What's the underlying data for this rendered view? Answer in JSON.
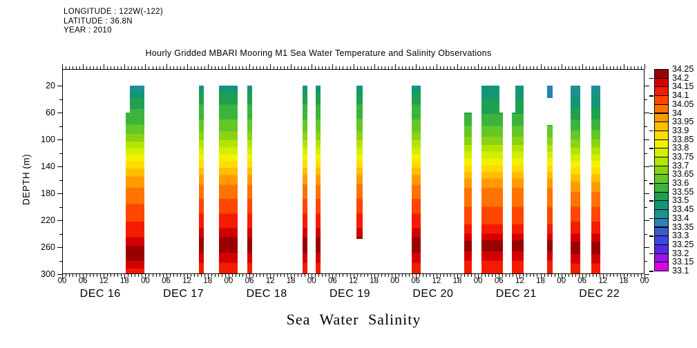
{
  "header": {
    "longitude": "LONGITUDE : 122W(-122)",
    "latitude": "LATITUDE : 36.8N",
    "year": "YEAR : 2010"
  },
  "title": "Hourly Gridded MBARI Mooring M1 Sea Water Temperature and Salinity Observations",
  "footer_label": "Sea Water Salinity",
  "y_axis_label": "DEPTH (m)",
  "chart_data": {
    "type": "heatmap",
    "title": "Hourly Gridded MBARI Mooring M1 Sea Water Temperature and Salinity Observations",
    "variable": "Sea Water Salinity",
    "ylabel": "DEPTH (m)",
    "x_axis": {
      "start": "DEC 16 00:00",
      "end": "DEC 23 00:00",
      "hours_total": 168,
      "major_tick_hours": 6,
      "minor_tick_hours": 1,
      "hour_labels": [
        "00",
        "06",
        "12",
        "18"
      ],
      "day_labels": [
        "DEC 16",
        "DEC 17",
        "DEC 18",
        "DEC 19",
        "DEC 20",
        "DEC 21",
        "DEC 22"
      ]
    },
    "y_axis": {
      "min_depth": 20,
      "max_depth": 300,
      "label_step": 40,
      "minor_step": 20,
      "tick_labels": [
        "20",
        "60",
        "100",
        "140",
        "180",
        "220",
        "260",
        "300"
      ]
    },
    "colorbar": {
      "boundary_labels": [
        "34.25",
        "34.2",
        "34.15",
        "34.1",
        "34.05",
        "34",
        "33.95",
        "33.9",
        "33.85",
        "33.8",
        "33.75",
        "33.7",
        "33.65",
        "33.6",
        "33.55",
        "33.5",
        "33.45",
        "33.4",
        "33.35",
        "33.3",
        "33.25",
        "33.2",
        "33.15",
        "33.1"
      ],
      "colors_top_to_bottom": [
        "#9b0000",
        "#d20000",
        "#f51b00",
        "#ff4600",
        "#ff7300",
        "#ff9b00",
        "#ffbe00",
        "#ffdc00",
        "#f2f200",
        "#d4ee00",
        "#b4e400",
        "#8cd214",
        "#62c828",
        "#3cb43c",
        "#1ea050",
        "#129678",
        "#1e9090",
        "#2882b4",
        "#3c5ac8",
        "#3c46e0",
        "#5528e6",
        "#9614e8",
        "#dc00e8"
      ]
    },
    "palette": {
      "33.1": "#dc00e8",
      "33.15": "#9614e8",
      "33.2": "#5528e6",
      "33.25": "#3c46e0",
      "33.3": "#3c5ac8",
      "33.35": "#2882b4",
      "33.4": "#1e9090",
      "33.45": "#129678",
      "33.5": "#1ea050",
      "33.55": "#3cb43c",
      "33.6": "#62c828",
      "33.65": "#8cd214",
      "33.7": "#b4e400",
      "33.75": "#d4ee00",
      "33.8": "#f2f200",
      "33.85": "#ffdc00",
      "33.9": "#ffbe00",
      "33.95": "#ff9b00",
      "34": "#ff7300",
      "34.05": "#ff4600",
      "34.1": "#f51b00",
      "34.15": "#d20000",
      "34.2": "#9b0000"
    },
    "profiles": {
      "stdA": [
        [
          20,
          "33.4"
        ],
        [
          30,
          "33.45"
        ],
        [
          38,
          "33.5"
        ],
        [
          55,
          "33.55"
        ],
        [
          78,
          "33.6"
        ],
        [
          92,
          "33.65"
        ],
        [
          103,
          "33.7"
        ],
        [
          113,
          "33.75"
        ],
        [
          123,
          "33.8"
        ],
        [
          133,
          "33.85"
        ],
        [
          143,
          "33.9"
        ],
        [
          155,
          "33.95"
        ],
        [
          172,
          "34"
        ],
        [
          196,
          "34.05"
        ],
        [
          222,
          "34.1"
        ],
        [
          245,
          "34.15"
        ],
        [
          258,
          "34.2"
        ],
        [
          280,
          "34.15"
        ],
        [
          292,
          "34.1"
        ]
      ],
      "std": [
        [
          20,
          "33.45"
        ],
        [
          31,
          "33.5"
        ],
        [
          48,
          "33.55"
        ],
        [
          70,
          "33.6"
        ],
        [
          88,
          "33.65"
        ],
        [
          101,
          "33.7"
        ],
        [
          112,
          "33.75"
        ],
        [
          122,
          "33.8"
        ],
        [
          132,
          "33.85"
        ],
        [
          142,
          "33.9"
        ],
        [
          153,
          "33.95"
        ],
        [
          167,
          "34"
        ],
        [
          188,
          "34.05"
        ],
        [
          210,
          "34.1"
        ],
        [
          232,
          "34.15"
        ],
        [
          245,
          "34.2"
        ],
        [
          268,
          "34.15"
        ],
        [
          283,
          "34.1"
        ]
      ],
      "dec21": [
        [
          20,
          "33.45"
        ],
        [
          40,
          "33.5"
        ],
        [
          62,
          "33.55"
        ],
        [
          80,
          "33.6"
        ],
        [
          96,
          "33.65"
        ],
        [
          108,
          "33.7"
        ],
        [
          118,
          "33.75"
        ],
        [
          128,
          "33.8"
        ],
        [
          138,
          "33.85"
        ],
        [
          148,
          "33.9"
        ],
        [
          158,
          "33.95"
        ],
        [
          172,
          "34"
        ],
        [
          200,
          "34.05"
        ],
        [
          226,
          "34.1"
        ],
        [
          240,
          "34.15"
        ],
        [
          250,
          "34.2"
        ],
        [
          266,
          "34.15"
        ],
        [
          280,
          "34.1"
        ]
      ],
      "dec22": [
        [
          20,
          "33.4"
        ],
        [
          34,
          "33.45"
        ],
        [
          52,
          "33.5"
        ],
        [
          70,
          "33.55"
        ],
        [
          86,
          "33.6"
        ],
        [
          100,
          "33.65"
        ],
        [
          112,
          "33.7"
        ],
        [
          122,
          "33.75"
        ],
        [
          132,
          "33.8"
        ],
        [
          142,
          "33.85"
        ],
        [
          152,
          "33.9"
        ],
        [
          163,
          "33.95"
        ],
        [
          178,
          "34"
        ],
        [
          200,
          "34.05"
        ],
        [
          222,
          "34.1"
        ],
        [
          240,
          "34.15"
        ],
        [
          252,
          "34.2"
        ],
        [
          270,
          "34.15"
        ],
        [
          284,
          "34.1"
        ]
      ],
      "ktop": [
        [
          20,
          "33.35"
        ]
      ]
    },
    "columns": [
      {
        "h0": 18.4,
        "h1": 19.6,
        "d0": 60,
        "d1": 300,
        "profile": "stdA"
      },
      {
        "h0": 19.6,
        "h1": 23.8,
        "d0": 20,
        "d1": 300,
        "profile": "stdA"
      },
      {
        "h0": 39.4,
        "h1": 40.9,
        "d0": 20,
        "d1": 300,
        "profile": "std"
      },
      {
        "h0": 45.3,
        "h1": 50.7,
        "d0": 20,
        "d1": 300,
        "profile": "std"
      },
      {
        "h0": 53.3,
        "h1": 54.7,
        "d0": 20,
        "d1": 300,
        "profile": "std"
      },
      {
        "h0": 69.3,
        "h1": 70.8,
        "d0": 20,
        "d1": 300,
        "profile": "std"
      },
      {
        "h0": 73.2,
        "h1": 74.6,
        "d0": 20,
        "d1": 300,
        "profile": "std"
      },
      {
        "h0": 84.9,
        "h1": 86.6,
        "d0": 20,
        "d1": 248,
        "profile": "std"
      },
      {
        "h0": 100.8,
        "h1": 103.4,
        "d0": 20,
        "d1": 300,
        "profile": "std"
      },
      {
        "h0": 116.0,
        "h1": 118.2,
        "d0": 60,
        "d1": 300,
        "profile": "dec21"
      },
      {
        "h0": 121.0,
        "h1": 126.2,
        "d0": 20,
        "d1": 300,
        "profile": "dec21"
      },
      {
        "h0": 126.2,
        "h1": 127.2,
        "d0": 60,
        "d1": 300,
        "profile": "dec21"
      },
      {
        "h0": 129.8,
        "h1": 130.8,
        "d0": 60,
        "d1": 300,
        "profile": "dec21"
      },
      {
        "h0": 130.8,
        "h1": 133.2,
        "d0": 20,
        "d1": 300,
        "profile": "dec21"
      },
      {
        "h0": 139.9,
        "h1": 141.5,
        "d0": 20,
        "d1": 38,
        "profile": "ktop"
      },
      {
        "h0": 139.9,
        "h1": 141.5,
        "d0": 78,
        "d1": 300,
        "profile": "dec21"
      },
      {
        "h0": 146.6,
        "h1": 149.4,
        "d0": 20,
        "d1": 300,
        "profile": "dec22"
      },
      {
        "h0": 152.6,
        "h1": 155.3,
        "d0": 20,
        "d1": 300,
        "profile": "dec22"
      }
    ]
  }
}
